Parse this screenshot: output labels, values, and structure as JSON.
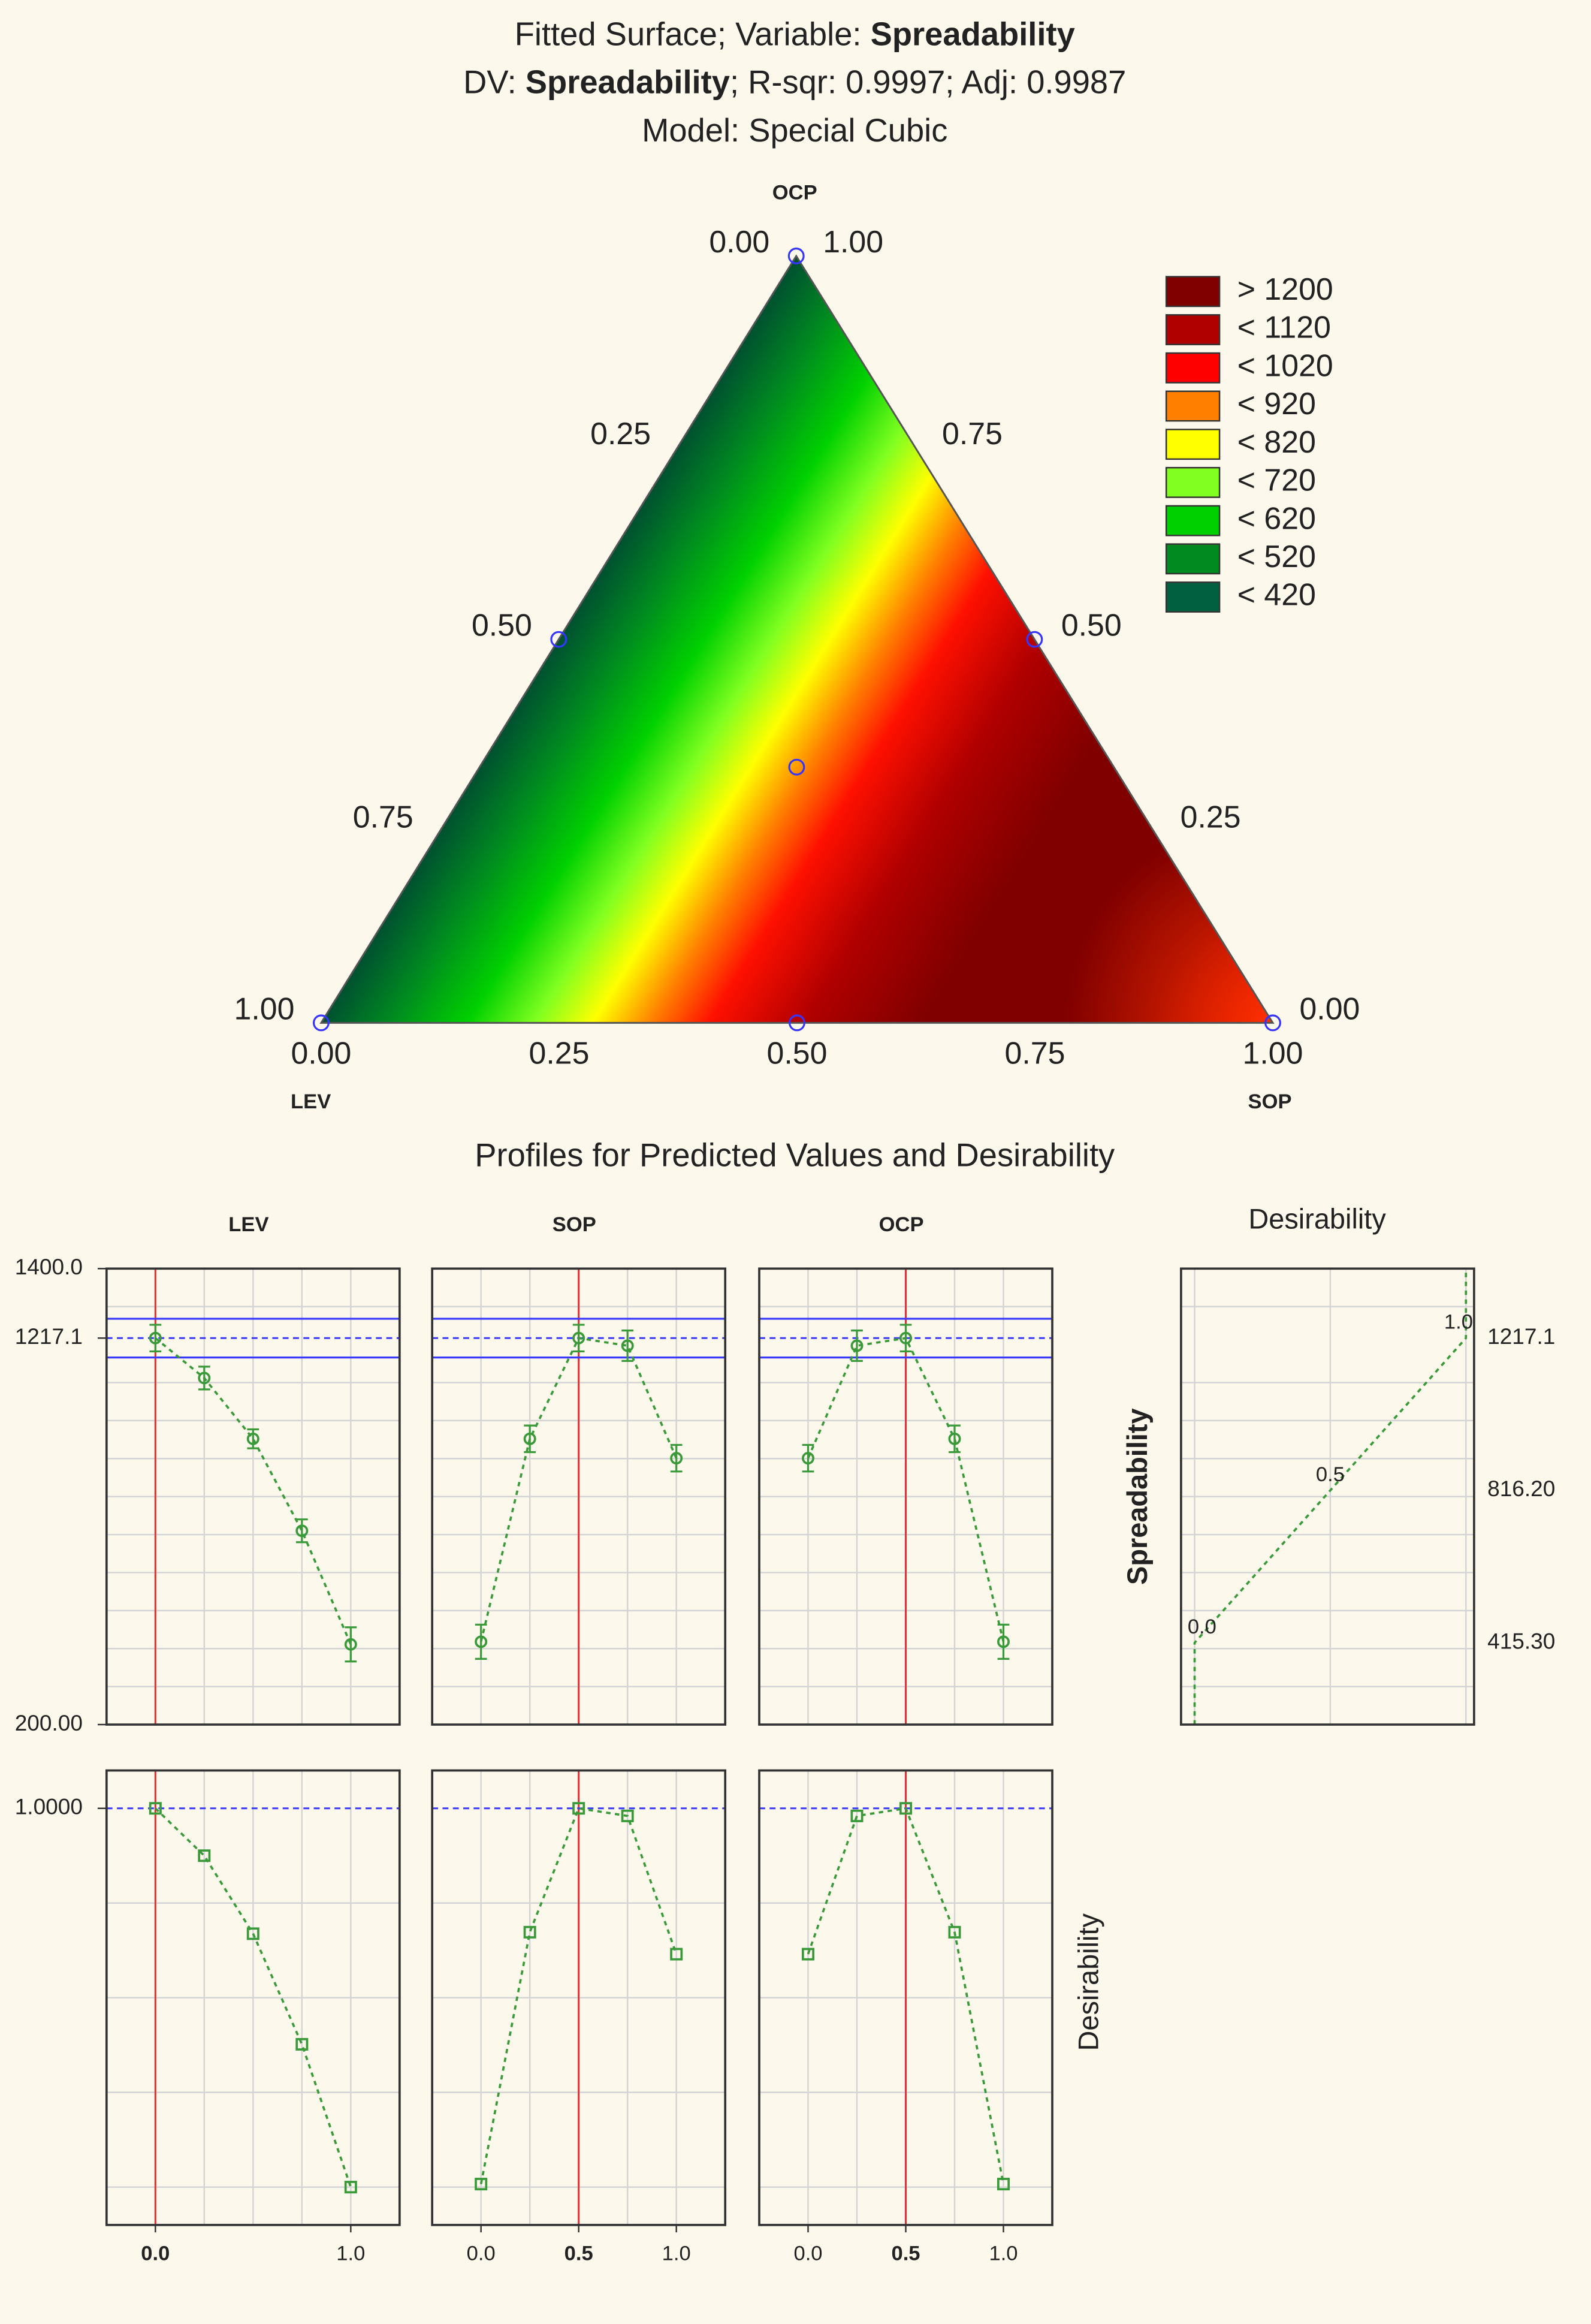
{
  "chart_data": [
    {
      "type": "ternary",
      "title_lines": [
        [
          {
            "text": "Fitted Surface; Variable: "
          },
          {
            "text": "Spreadability",
            "bold": true
          }
        ],
        [
          {
            "text": "DV: "
          },
          {
            "text": "Spreadability",
            "bold": true
          },
          {
            "text": "; R-sqr: 0.9997; Adj: 0.9987"
          }
        ],
        [
          {
            "text": "Model: Special Cubic"
          }
        ]
      ],
      "vertices": {
        "top": "OCP",
        "left": "LEV",
        "right": "SOP"
      },
      "bottom_ticks": [
        {
          "value": 0,
          "label": "0.00"
        },
        0.25,
        {
          "value": 0.5,
          "label": "0.50"
        },
        0.75,
        {
          "value": 1,
          "label": "1.00"
        }
      ],
      "left_ticks": [
        {
          "value": 0,
          "label": "0.00"
        },
        0.25,
        {
          "value": 0.5,
          "label": "0.50"
        },
        0.75,
        {
          "value": 1,
          "label": "1.00"
        }
      ],
      "right_ticks": [
        {
          "value": 0,
          "label": "0.00"
        },
        0.25,
        {
          "value": 0.5,
          "label": "0.50"
        },
        0.75,
        {
          "value": 1,
          "label": "1.00"
        }
      ],
      "design_points": [
        [
          1,
          0,
          0
        ],
        [
          0,
          1,
          0
        ],
        [
          0,
          0,
          1
        ],
        [
          0.5,
          0.5,
          0
        ],
        [
          0.5,
          0,
          0.5
        ],
        [
          0,
          0.5,
          0.5
        ],
        [
          0.3333,
          0.3333,
          0.3333
        ]
      ],
      "legend": {
        "position": "top-right",
        "items": [
          {
            "value": 1200,
            "label": "> 1200",
            "color": "#800000"
          },
          {
            "value": 1120,
            "label": "< 1120",
            "color": "#b00000"
          },
          {
            "value": 1020,
            "label": "< 1020",
            "color": "#ff0000"
          },
          {
            "value": 920,
            "label": "< 920",
            "color": "#ff8000"
          },
          {
            "value": 820,
            "label": "< 820",
            "color": "#ffff00"
          },
          {
            "value": 720,
            "label": "< 720",
            "color": "#80ff20"
          },
          {
            "value": 620,
            "label": "< 620",
            "color": "#00d000"
          },
          {
            "value": 520,
            "label": "< 520",
            "color": "#008a20"
          },
          {
            "value": 420,
            "label": "< 420",
            "color": "#006040"
          }
        ]
      }
    },
    {
      "type": "profiles",
      "title": "Profiles for Predicted Values and Desirability",
      "color": "#3a9a3a",
      "grid": true,
      "xlim": [
        -0.25,
        1.25
      ],
      "ylim": [
        200,
        1400
      ],
      "yticks": [
        {
          "value": 200,
          "label": "200.00"
        },
        1217.1,
        {
          "value": 1400,
          "label": "1400.0"
        }
      ],
      "minor_yticks": [
        300,
        400,
        500,
        600,
        700,
        800,
        900,
        1000,
        1100,
        1300
      ],
      "confidence_band": [
        1166,
        1268
      ],
      "y2lim": [
        -0.1,
        1.1
      ],
      "y2ticks": [
        {
          "value": 1,
          "label": "1.0000"
        }
      ],
      "minor_y2ticks": [
        0,
        0.25,
        0.5,
        0.75
      ],
      "y_label": "Spreadability",
      "y2_label": "Desirability",
      "factors": [
        {
          "name": "LEV",
          "current": 0,
          "x": [
            0,
            0.25,
            0.5,
            0.75,
            1
          ],
          "values": [
            1217.1,
            1112,
            952,
            710,
            411
          ],
          "errors": [
            35,
            30,
            25,
            30,
            45
          ],
          "desirability": [
            1,
            0.875,
            0.669,
            0.377,
            0
          ],
          "xticks": [
            {
              "value": 0,
              "label": "0.0"
            },
            {
              "value": 1,
              "label": "1.0"
            }
          ]
        },
        {
          "name": "SOP",
          "current": 0.5,
          "x": [
            0,
            0.25,
            0.5,
            0.75,
            1
          ],
          "values": [
            418,
            952,
            1217.1,
            1197,
            901
          ],
          "errors": [
            45,
            35,
            35,
            40,
            35
          ],
          "desirability": [
            0.008,
            0.673,
            1,
            0.98,
            0.615
          ],
          "xticks": [
            {
              "value": 0,
              "label": "0.0"
            },
            {
              "value": 0.5,
              "label": "0.5"
            },
            {
              "value": 1,
              "label": "1.0"
            }
          ]
        },
        {
          "name": "OCP",
          "current": 0.5,
          "x": [
            0,
            0.25,
            0.5,
            0.75,
            1
          ],
          "values": [
            901,
            1197,
            1217.1,
            952,
            418
          ],
          "errors": [
            35,
            40,
            35,
            35,
            45
          ],
          "desirability": [
            0.615,
            0.98,
            1,
            0.673,
            0.008
          ],
          "xticks": [
            {
              "value": 0,
              "label": "0.0"
            },
            {
              "value": 0.5,
              "label": "0.5"
            },
            {
              "value": 1,
              "label": "1.0"
            }
          ]
        }
      ],
      "desirability_panel": {
        "title": "Desirability",
        "xlim": [
          -0.05,
          1.03
        ],
        "line_x": [
          0,
          0,
          0.5,
          1,
          1
        ],
        "line_values": [
          200,
          415.3,
          816.2,
          1217.1,
          1400
        ],
        "point_x": [
          0,
          0.5,
          1
        ],
        "point_y": [
          415.3,
          816.2,
          1217.1
        ],
        "point_labels": [
          "0.0",
          "0.5",
          "1.0"
        ],
        "yticks": [
          {
            "value": 415.3,
            "label": "415.30"
          },
          {
            "value": 816.2,
            "label": "816.20"
          },
          1217.1
        ]
      }
    }
  ]
}
